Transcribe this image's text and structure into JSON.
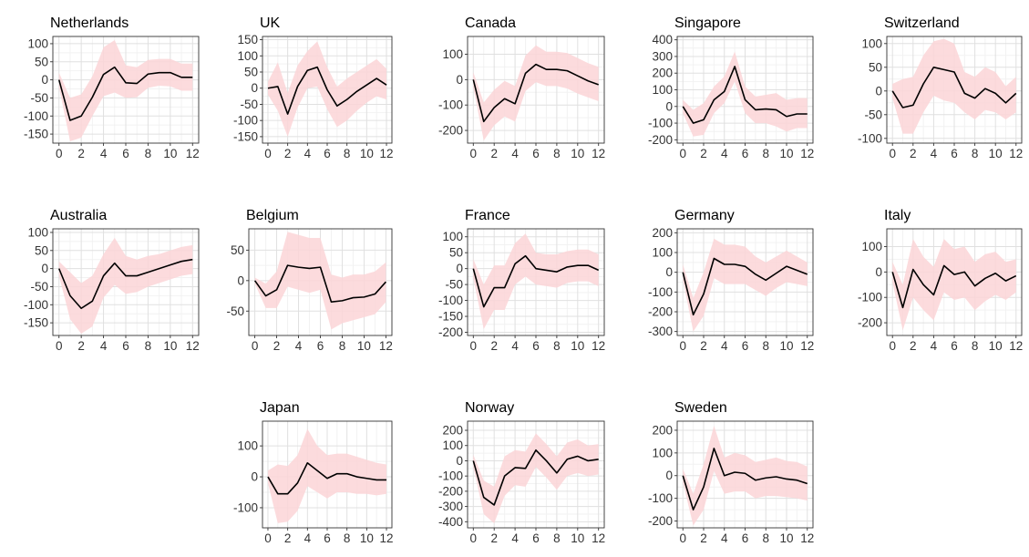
{
  "colors": {
    "band": "#fbd5d7",
    "line": "#000000"
  },
  "chart_data": [
    {
      "type": "line",
      "title": "Netherlands",
      "x": [
        0,
        1,
        2,
        3,
        4,
        5,
        6,
        7,
        8,
        9,
        10,
        11,
        12
      ],
      "y": [
        0,
        -112,
        -100,
        -48,
        15,
        35,
        -8,
        -10,
        16,
        20,
        20,
        7,
        7
      ],
      "lower": [
        -20,
        -170,
        -160,
        -100,
        -45,
        -35,
        -50,
        -48,
        -22,
        -16,
        -18,
        -30,
        -30
      ],
      "upper": [
        20,
        -50,
        -40,
        10,
        90,
        110,
        40,
        35,
        55,
        58,
        58,
        45,
        45
      ],
      "xticks": [
        0,
        2,
        4,
        6,
        8,
        10,
        12
      ],
      "yticks": [
        -150,
        -100,
        -50,
        0,
        50,
        100
      ],
      "ylim": [
        -175,
        120
      ]
    },
    {
      "type": "line",
      "title": "UK",
      "x": [
        0,
        1,
        2,
        3,
        4,
        5,
        6,
        7,
        8,
        9,
        10,
        11,
        12
      ],
      "y": [
        0,
        5,
        -80,
        5,
        55,
        65,
        -5,
        -55,
        -35,
        -10,
        10,
        30,
        10
      ],
      "lower": [
        -20,
        -70,
        -150,
        -60,
        0,
        5,
        -65,
        -120,
        -100,
        -70,
        -45,
        -25,
        -35
      ],
      "upper": [
        20,
        80,
        -15,
        70,
        115,
        145,
        65,
        5,
        30,
        50,
        70,
        90,
        60
      ],
      "xticks": [
        0,
        2,
        4,
        6,
        8,
        10,
        12
      ],
      "yticks": [
        -150,
        -100,
        -50,
        0,
        50,
        100,
        150
      ],
      "ylim": [
        -170,
        160
      ]
    },
    {
      "type": "line",
      "title": "Canada",
      "x": [
        0,
        1,
        2,
        3,
        4,
        5,
        6,
        7,
        8,
        9,
        10,
        11,
        12
      ],
      "y": [
        0,
        -165,
        -110,
        -75,
        -95,
        25,
        60,
        40,
        40,
        35,
        15,
        -5,
        -20
      ],
      "lower": [
        -30,
        -240,
        -180,
        -145,
        -165,
        -45,
        -10,
        -25,
        -25,
        -35,
        -55,
        -70,
        -85
      ],
      "upper": [
        30,
        -90,
        -40,
        -5,
        -25,
        95,
        135,
        110,
        110,
        105,
        85,
        65,
        50
      ],
      "xticks": [
        0,
        2,
        4,
        6,
        8,
        10,
        12
      ],
      "yticks": [
        -200,
        -100,
        0,
        100
      ],
      "ylim": [
        -250,
        170
      ]
    },
    {
      "type": "line",
      "title": "Singapore",
      "x": [
        0,
        1,
        2,
        3,
        4,
        5,
        6,
        7,
        8,
        9,
        10,
        11,
        12
      ],
      "y": [
        0,
        -100,
        -80,
        40,
        90,
        240,
        40,
        -20,
        -15,
        -20,
        -60,
        -45,
        -45
      ],
      "lower": [
        -40,
        -180,
        -170,
        -40,
        20,
        150,
        -40,
        -100,
        -100,
        -120,
        -150,
        -130,
        -130
      ],
      "upper": [
        40,
        -20,
        20,
        120,
        180,
        330,
        120,
        60,
        70,
        80,
        40,
        50,
        50
      ],
      "xticks": [
        0,
        2,
        4,
        6,
        8,
        10,
        12
      ],
      "yticks": [
        -200,
        -100,
        0,
        100,
        200,
        300,
        400
      ],
      "ylim": [
        -220,
        420
      ]
    },
    {
      "type": "line",
      "title": "Switzerland",
      "x": [
        0,
        1,
        2,
        3,
        4,
        5,
        6,
        7,
        8,
        9,
        10,
        11,
        12
      ],
      "y": [
        0,
        -35,
        -30,
        15,
        50,
        45,
        40,
        -5,
        -15,
        5,
        -5,
        -25,
        -5
      ],
      "lower": [
        -15,
        -90,
        -90,
        -45,
        -10,
        -20,
        -25,
        -45,
        -60,
        -40,
        -45,
        -60,
        -45
      ],
      "upper": [
        15,
        25,
        30,
        75,
        105,
        110,
        100,
        40,
        30,
        50,
        40,
        10,
        30
      ],
      "xticks": [
        0,
        2,
        4,
        6,
        8,
        10,
        12
      ],
      "yticks": [
        -100,
        -50,
        0,
        50,
        100
      ],
      "ylim": [
        -110,
        115
      ]
    },
    {
      "type": "line",
      "title": "Australia",
      "x": [
        0,
        1,
        2,
        3,
        4,
        5,
        6,
        7,
        8,
        9,
        10,
        11,
        12
      ],
      "y": [
        0,
        -75,
        -110,
        -90,
        -20,
        15,
        -20,
        -20,
        -10,
        0,
        10,
        20,
        25
      ],
      "lower": [
        -20,
        -140,
        -180,
        -160,
        -80,
        -45,
        -70,
        -65,
        -50,
        -40,
        -30,
        -20,
        -15
      ],
      "upper": [
        20,
        -10,
        -40,
        -20,
        40,
        85,
        35,
        25,
        35,
        40,
        50,
        60,
        65
      ],
      "xticks": [
        0,
        2,
        4,
        6,
        8,
        10,
        12
      ],
      "yticks": [
        -150,
        -100,
        -50,
        0,
        50,
        100
      ],
      "ylim": [
        -185,
        110
      ]
    },
    {
      "type": "line",
      "title": "Belgium",
      "x": [
        0,
        1,
        2,
        3,
        4,
        5,
        6,
        7,
        8,
        9,
        10,
        11,
        12
      ],
      "y": [
        0,
        -25,
        -15,
        25,
        22,
        20,
        22,
        -35,
        -33,
        -28,
        -27,
        -22,
        -2
      ],
      "lower": [
        -5,
        -45,
        -45,
        -10,
        -15,
        -20,
        -15,
        -80,
        -70,
        -65,
        -60,
        -55,
        -35
      ],
      "upper": [
        5,
        -5,
        15,
        80,
        75,
        70,
        70,
        10,
        5,
        10,
        10,
        15,
        30
      ],
      "xticks": [
        0,
        2,
        4,
        6,
        8,
        10,
        12
      ],
      "yticks": [
        -50,
        0,
        50
      ],
      "ylim": [
        -90,
        85
      ]
    },
    {
      "type": "line",
      "title": "France",
      "x": [
        0,
        1,
        2,
        3,
        4,
        5,
        6,
        7,
        8,
        9,
        10,
        11,
        12
      ],
      "y": [
        0,
        -120,
        -60,
        -60,
        15,
        40,
        0,
        -5,
        -10,
        5,
        10,
        10,
        -5
      ],
      "lower": [
        -30,
        -190,
        -130,
        -130,
        -50,
        -25,
        -50,
        -55,
        -60,
        -45,
        -40,
        -40,
        -55
      ],
      "upper": [
        30,
        -50,
        10,
        10,
        80,
        110,
        50,
        45,
        45,
        55,
        60,
        60,
        45
      ],
      "xticks": [
        0,
        2,
        4,
        6,
        8,
        10,
        12
      ],
      "yticks": [
        -200,
        -150,
        -100,
        -50,
        0,
        50,
        100
      ],
      "ylim": [
        -210,
        125
      ]
    },
    {
      "type": "line",
      "title": "Germany",
      "x": [
        0,
        1,
        2,
        3,
        4,
        5,
        6,
        7,
        8,
        9,
        10,
        11,
        12
      ],
      "y": [
        0,
        -215,
        -110,
        70,
        40,
        40,
        30,
        -10,
        -40,
        -5,
        30,
        10,
        -10
      ],
      "lower": [
        -40,
        -300,
        -220,
        -30,
        -60,
        -60,
        -60,
        -90,
        -120,
        -80,
        -50,
        -60,
        -70
      ],
      "upper": [
        40,
        -130,
        0,
        170,
        140,
        140,
        130,
        80,
        50,
        80,
        110,
        80,
        50
      ],
      "xticks": [
        0,
        2,
        4,
        6,
        8,
        10,
        12
      ],
      "yticks": [
        -300,
        -200,
        -100,
        0,
        100,
        200
      ],
      "ylim": [
        -320,
        220
      ]
    },
    {
      "type": "line",
      "title": "Italy",
      "x": [
        0,
        1,
        2,
        3,
        4,
        5,
        6,
        7,
        8,
        9,
        10,
        11,
        12
      ],
      "y": [
        0,
        -140,
        10,
        -50,
        -90,
        25,
        -10,
        0,
        -55,
        -25,
        -5,
        -35,
        -15
      ],
      "lower": [
        -40,
        -230,
        -100,
        -150,
        -190,
        -80,
        -110,
        -100,
        -150,
        -115,
        -90,
        -110,
        -80
      ],
      "upper": [
        40,
        -50,
        130,
        60,
        20,
        130,
        90,
        100,
        40,
        70,
        80,
        40,
        50
      ],
      "xticks": [
        0,
        2,
        4,
        6,
        8,
        10,
        12
      ],
      "yticks": [
        -200,
        -100,
        0,
        100
      ],
      "ylim": [
        -250,
        170
      ]
    },
    {
      "type": "line",
      "title": "Japan",
      "x": [
        0,
        1,
        2,
        3,
        4,
        5,
        6,
        7,
        8,
        9,
        10,
        11,
        12
      ],
      "y": [
        0,
        -55,
        -55,
        -20,
        45,
        20,
        -5,
        10,
        10,
        0,
        -5,
        -10,
        -10
      ],
      "lower": [
        -20,
        -150,
        -145,
        -110,
        -30,
        -50,
        -70,
        -50,
        -50,
        -55,
        -55,
        -60,
        -55
      ],
      "upper": [
        20,
        40,
        35,
        70,
        155,
        100,
        70,
        75,
        75,
        65,
        55,
        45,
        40
      ],
      "xticks": [
        0,
        2,
        4,
        6,
        8,
        10,
        12
      ],
      "yticks": [
        -100,
        0,
        100
      ],
      "ylim": [
        -165,
        180
      ]
    },
    {
      "type": "line",
      "title": "Norway",
      "x": [
        0,
        1,
        2,
        3,
        4,
        5,
        6,
        7,
        8,
        9,
        10,
        11,
        12
      ],
      "y": [
        0,
        -240,
        -290,
        -100,
        -45,
        -50,
        70,
        0,
        -80,
        10,
        30,
        0,
        10
      ],
      "lower": [
        -40,
        -350,
        -410,
        -230,
        -160,
        -170,
        -40,
        -110,
        -190,
        -100,
        -80,
        -100,
        -90
      ],
      "upper": [
        40,
        -130,
        -170,
        30,
        70,
        60,
        180,
        110,
        30,
        120,
        140,
        100,
        110
      ],
      "xticks": [
        0,
        2,
        4,
        6,
        8,
        10,
        12
      ],
      "yticks": [
        -400,
        -300,
        -200,
        -100,
        0,
        100,
        200
      ],
      "ylim": [
        -440,
        260
      ]
    },
    {
      "type": "line",
      "title": "Sweden",
      "x": [
        0,
        1,
        2,
        3,
        4,
        5,
        6,
        7,
        8,
        9,
        10,
        11,
        12
      ],
      "y": [
        0,
        -150,
        -50,
        120,
        0,
        15,
        10,
        -20,
        -10,
        -5,
        -15,
        -20,
        -35
      ],
      "lower": [
        -30,
        -220,
        -150,
        20,
        -80,
        -70,
        -70,
        -100,
        -90,
        -90,
        -95,
        -100,
        -110
      ],
      "upper": [
        30,
        -80,
        50,
        220,
        80,
        100,
        90,
        60,
        70,
        80,
        65,
        60,
        40
      ],
      "xticks": [
        0,
        2,
        4,
        6,
        8,
        10,
        12
      ],
      "yticks": [
        -200,
        -100,
        0,
        100,
        200
      ],
      "ylim": [
        -230,
        240
      ]
    }
  ]
}
